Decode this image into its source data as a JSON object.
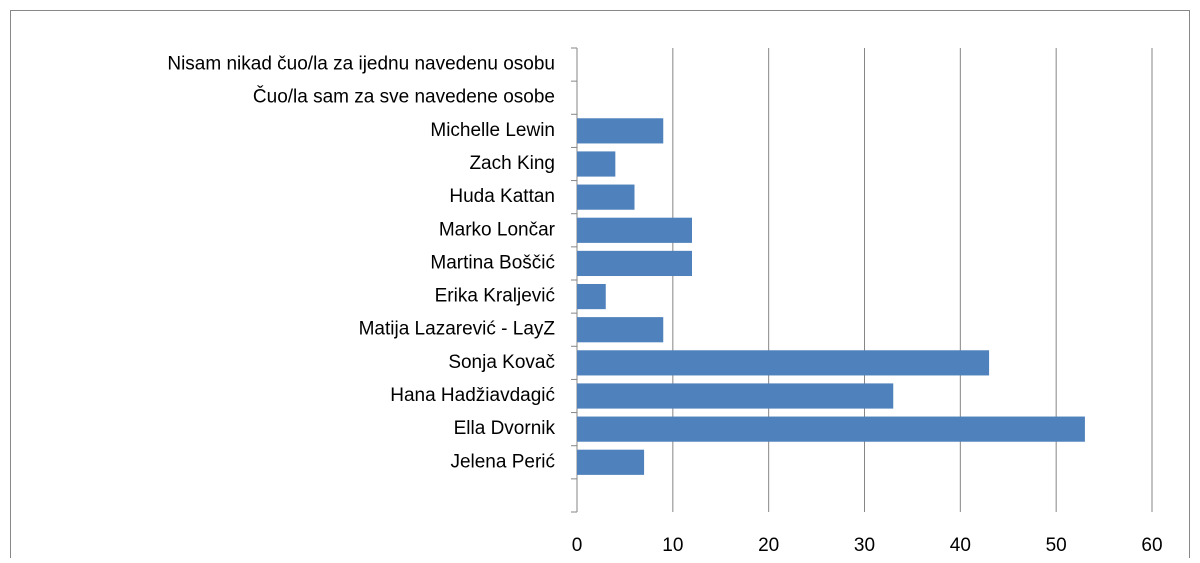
{
  "chart_data": {
    "type": "bar",
    "orientation": "horizontal",
    "categories": [
      "Nisam nikad čuo/la za ijednu navedenu osobu",
      "Čuo/la sam za sve navedene osobe",
      "Michelle Lewin",
      "Zach King",
      "Huda Kattan",
      "Marko Lončar",
      "Martina Boščić",
      "Erika Kraljević",
      "Matija Lazarević - LayZ",
      "Sonja Kovač",
      "Hana Hadžiavdagić",
      "Ella Dvornik",
      "Jelena Perić",
      null
    ],
    "values": [
      0,
      0,
      9,
      4,
      6,
      12,
      12,
      3,
      9,
      43,
      33,
      53,
      7,
      null
    ],
    "color": "#4f81bd",
    "xlim": [
      0,
      60
    ],
    "xticks": [
      0,
      10,
      20,
      30,
      40,
      50,
      60
    ],
    "grid": true
  }
}
